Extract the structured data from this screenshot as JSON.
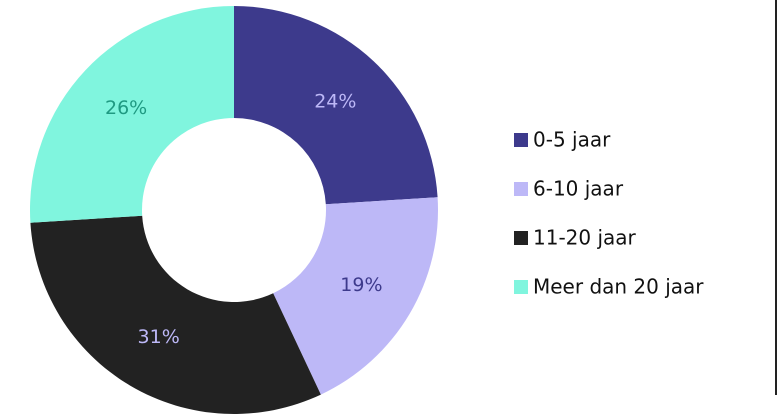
{
  "chart_data": {
    "type": "donut",
    "categories": [
      "0-5 jaar",
      "6-10 jaar",
      "11-20 jaar",
      "Meer dan 20 jaar"
    ],
    "values": [
      24,
      19,
      31,
      26
    ],
    "value_labels": [
      "24%",
      "19%",
      "31%",
      "26%"
    ],
    "colors": [
      "#3d3a8c",
      "#bdb8f7",
      "#222222",
      "#80f5de"
    ],
    "label_colors": [
      "#bdb8f7",
      "#3d3a8c",
      "#bdb8f7",
      "#1f9a82"
    ],
    "legend": "right"
  }
}
